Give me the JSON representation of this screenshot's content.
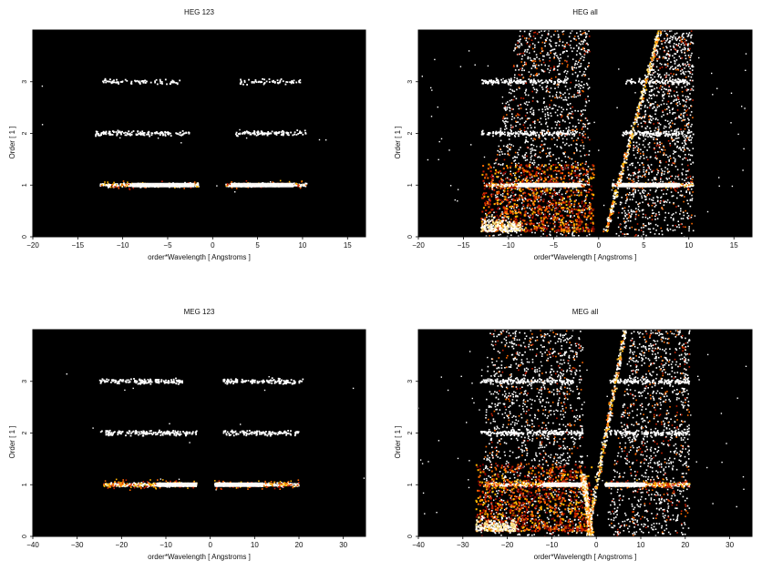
{
  "figure": {
    "colors": {
      "background": "#000000",
      "hot_colormap": [
        "#1a0000",
        "#7a0000",
        "#c81e00",
        "#ff6a00",
        "#ffb400",
        "#ffe48a",
        "#ffffff"
      ]
    }
  },
  "chart_data": [
    {
      "type": "heatmap",
      "title": "HEG 123",
      "xlabel": "order*Wavelength [ Angstroms ]",
      "ylabel": "Order [ 1 ]",
      "xlim": [
        -20,
        17
      ],
      "ylim": [
        0,
        4
      ],
      "xticks": [
        "−20",
        "−15",
        "−10",
        "−5",
        "0",
        "5",
        "10",
        "15"
      ],
      "xtick_values": [
        -20,
        -15,
        -10,
        -5,
        0,
        5,
        10,
        15
      ],
      "yticks": [
        "0",
        "1",
        "2",
        "3"
      ],
      "ytick_values": [
        0,
        1,
        2,
        3
      ],
      "bands": [
        {
          "order": 1,
          "x_ranges": [
            [
              -12.5,
              -1.5
            ],
            [
              1.5,
              10.5
            ]
          ],
          "core_ranges": [
            [
              -9,
              -2
            ],
            [
              2,
              9
            ]
          ],
          "intensity": "high"
        },
        {
          "order": 2,
          "x_ranges": [
            [
              -13,
              -2.5
            ],
            [
              2.5,
              10.5
            ]
          ],
          "intensity": "medium"
        },
        {
          "order": 3,
          "x_ranges": [
            [
              -12.5,
              -3.5
            ],
            [
              3,
              9.8
            ]
          ],
          "intensity": "low"
        }
      ],
      "diagonal_tracks": [],
      "background_scatter": "sparse"
    },
    {
      "type": "heatmap",
      "title": "HEG all",
      "xlabel": "order*Wavelength [ Angstroms ]",
      "ylabel": "Order [ 1 ]",
      "xlim": [
        -20,
        17
      ],
      "ylim": [
        0,
        4
      ],
      "xticks": [
        "−20",
        "−15",
        "−10",
        "−5",
        "0",
        "5",
        "10",
        "15"
      ],
      "xtick_values": [
        -20,
        -15,
        -10,
        -5,
        0,
        5,
        10,
        15
      ],
      "yticks": [
        "0",
        "1",
        "2",
        "3"
      ],
      "ytick_values": [
        0,
        1,
        2,
        3
      ],
      "bands": [
        {
          "order": 1,
          "x_ranges": [
            [
              -12.5,
              -1.5
            ],
            [
              1.5,
              10.5
            ]
          ],
          "core_ranges": [
            [
              -9,
              -2
            ],
            [
              2,
              9
            ]
          ],
          "intensity": "high"
        },
        {
          "order": 2,
          "x_ranges": [
            [
              -13,
              -2.5
            ],
            [
              2.5,
              10.5
            ]
          ],
          "intensity": "medium"
        },
        {
          "order": 3,
          "x_ranges": [
            [
              -13,
              -3.5
            ],
            [
              3,
              10
            ]
          ],
          "intensity": "medium"
        }
      ],
      "diagonal_tracks": [
        {
          "from": [
            0.8,
            0.1
          ],
          "to": [
            6.8,
            4.0
          ]
        }
      ],
      "background_scatter": "dense",
      "wedge": {
        "x_at_y0": [
          -13,
          -1
        ],
        "x_at_y4": [
          -9,
          -1
        ],
        "right_x_at_y0": [
          1.5,
          10.5
        ],
        "right_x_at_y4": [
          6.5,
          10.5
        ]
      },
      "hot_region": {
        "x_range": [
          -13,
          -0.5
        ],
        "y_range": [
          0.1,
          1.4
        ]
      }
    },
    {
      "type": "heatmap",
      "title": "MEG 123",
      "xlabel": "order*Wavelength [ Angstroms ]",
      "ylabel": "Order [ 1 ]",
      "xlim": [
        -40,
        35
      ],
      "ylim": [
        0,
        4
      ],
      "xticks": [
        "−40",
        "−30",
        "−20",
        "−10",
        "0",
        "10",
        "20",
        "30"
      ],
      "xtick_values": [
        -40,
        -30,
        -20,
        -10,
        0,
        10,
        20,
        30
      ],
      "yticks": [
        "0",
        "1",
        "2",
        "3"
      ],
      "ytick_values": [
        0,
        1,
        2,
        3
      ],
      "bands": [
        {
          "order": 1,
          "x_ranges": [
            [
              -24,
              -3
            ],
            [
              1,
              20
            ]
          ],
          "core_ranges": [
            [
              -12,
              -3
            ],
            [
              1,
              12
            ]
          ],
          "intensity": "high"
        },
        {
          "order": 2,
          "x_ranges": [
            [
              -25,
              -3
            ],
            [
              3,
              20
            ]
          ],
          "intensity": "medium"
        },
        {
          "order": 3,
          "x_ranges": [
            [
              -25,
              -6
            ],
            [
              3,
              21
            ]
          ],
          "intensity": "medium"
        }
      ],
      "diagonal_tracks": [],
      "background_scatter": "sparse"
    },
    {
      "type": "heatmap",
      "title": "MEG all",
      "xlabel": "order*Wavelength [ Angstroms ]",
      "ylabel": "Order [ 1 ]",
      "xlim": [
        -40,
        35
      ],
      "ylim": [
        0,
        4
      ],
      "xticks": [
        "−40",
        "−30",
        "−20",
        "−10",
        "0",
        "10",
        "20",
        "30"
      ],
      "xtick_values": [
        -40,
        -30,
        -20,
        -10,
        0,
        10,
        20,
        30
      ],
      "yticks": [
        "0",
        "1",
        "2",
        "3"
      ],
      "ytick_values": [
        0,
        1,
        2,
        3
      ],
      "bands": [
        {
          "order": 1,
          "x_ranges": [
            [
              -25,
              -2
            ],
            [
              2,
              21
            ]
          ],
          "core_ranges": [
            [
              -12,
              -2
            ],
            [
              2,
              11
            ]
          ],
          "intensity": "high"
        },
        {
          "order": 2,
          "x_ranges": [
            [
              -26,
              -3
            ],
            [
              3,
              21
            ]
          ],
          "intensity": "medium"
        },
        {
          "order": 3,
          "x_ranges": [
            [
              -26,
              -5
            ],
            [
              3,
              21
            ]
          ],
          "intensity": "medium"
        }
      ],
      "diagonal_tracks": [
        {
          "from": [
            -2,
            0.0
          ],
          "to": [
            6.5,
            4.0
          ]
        },
        {
          "from": [
            -1,
            0.0
          ],
          "to": [
            -3,
            1.2
          ]
        }
      ],
      "background_scatter": "dense",
      "wedge": {
        "x_at_y0": [
          -26,
          -3
        ],
        "x_at_y4": [
          -24,
          -3
        ],
        "right_x_at_y0": [
          2,
          21
        ],
        "right_x_at_y4": [
          8,
          21
        ]
      },
      "hot_region": {
        "x_range": [
          -27,
          -1
        ],
        "y_range": [
          0.1,
          1.4
        ]
      }
    }
  ]
}
